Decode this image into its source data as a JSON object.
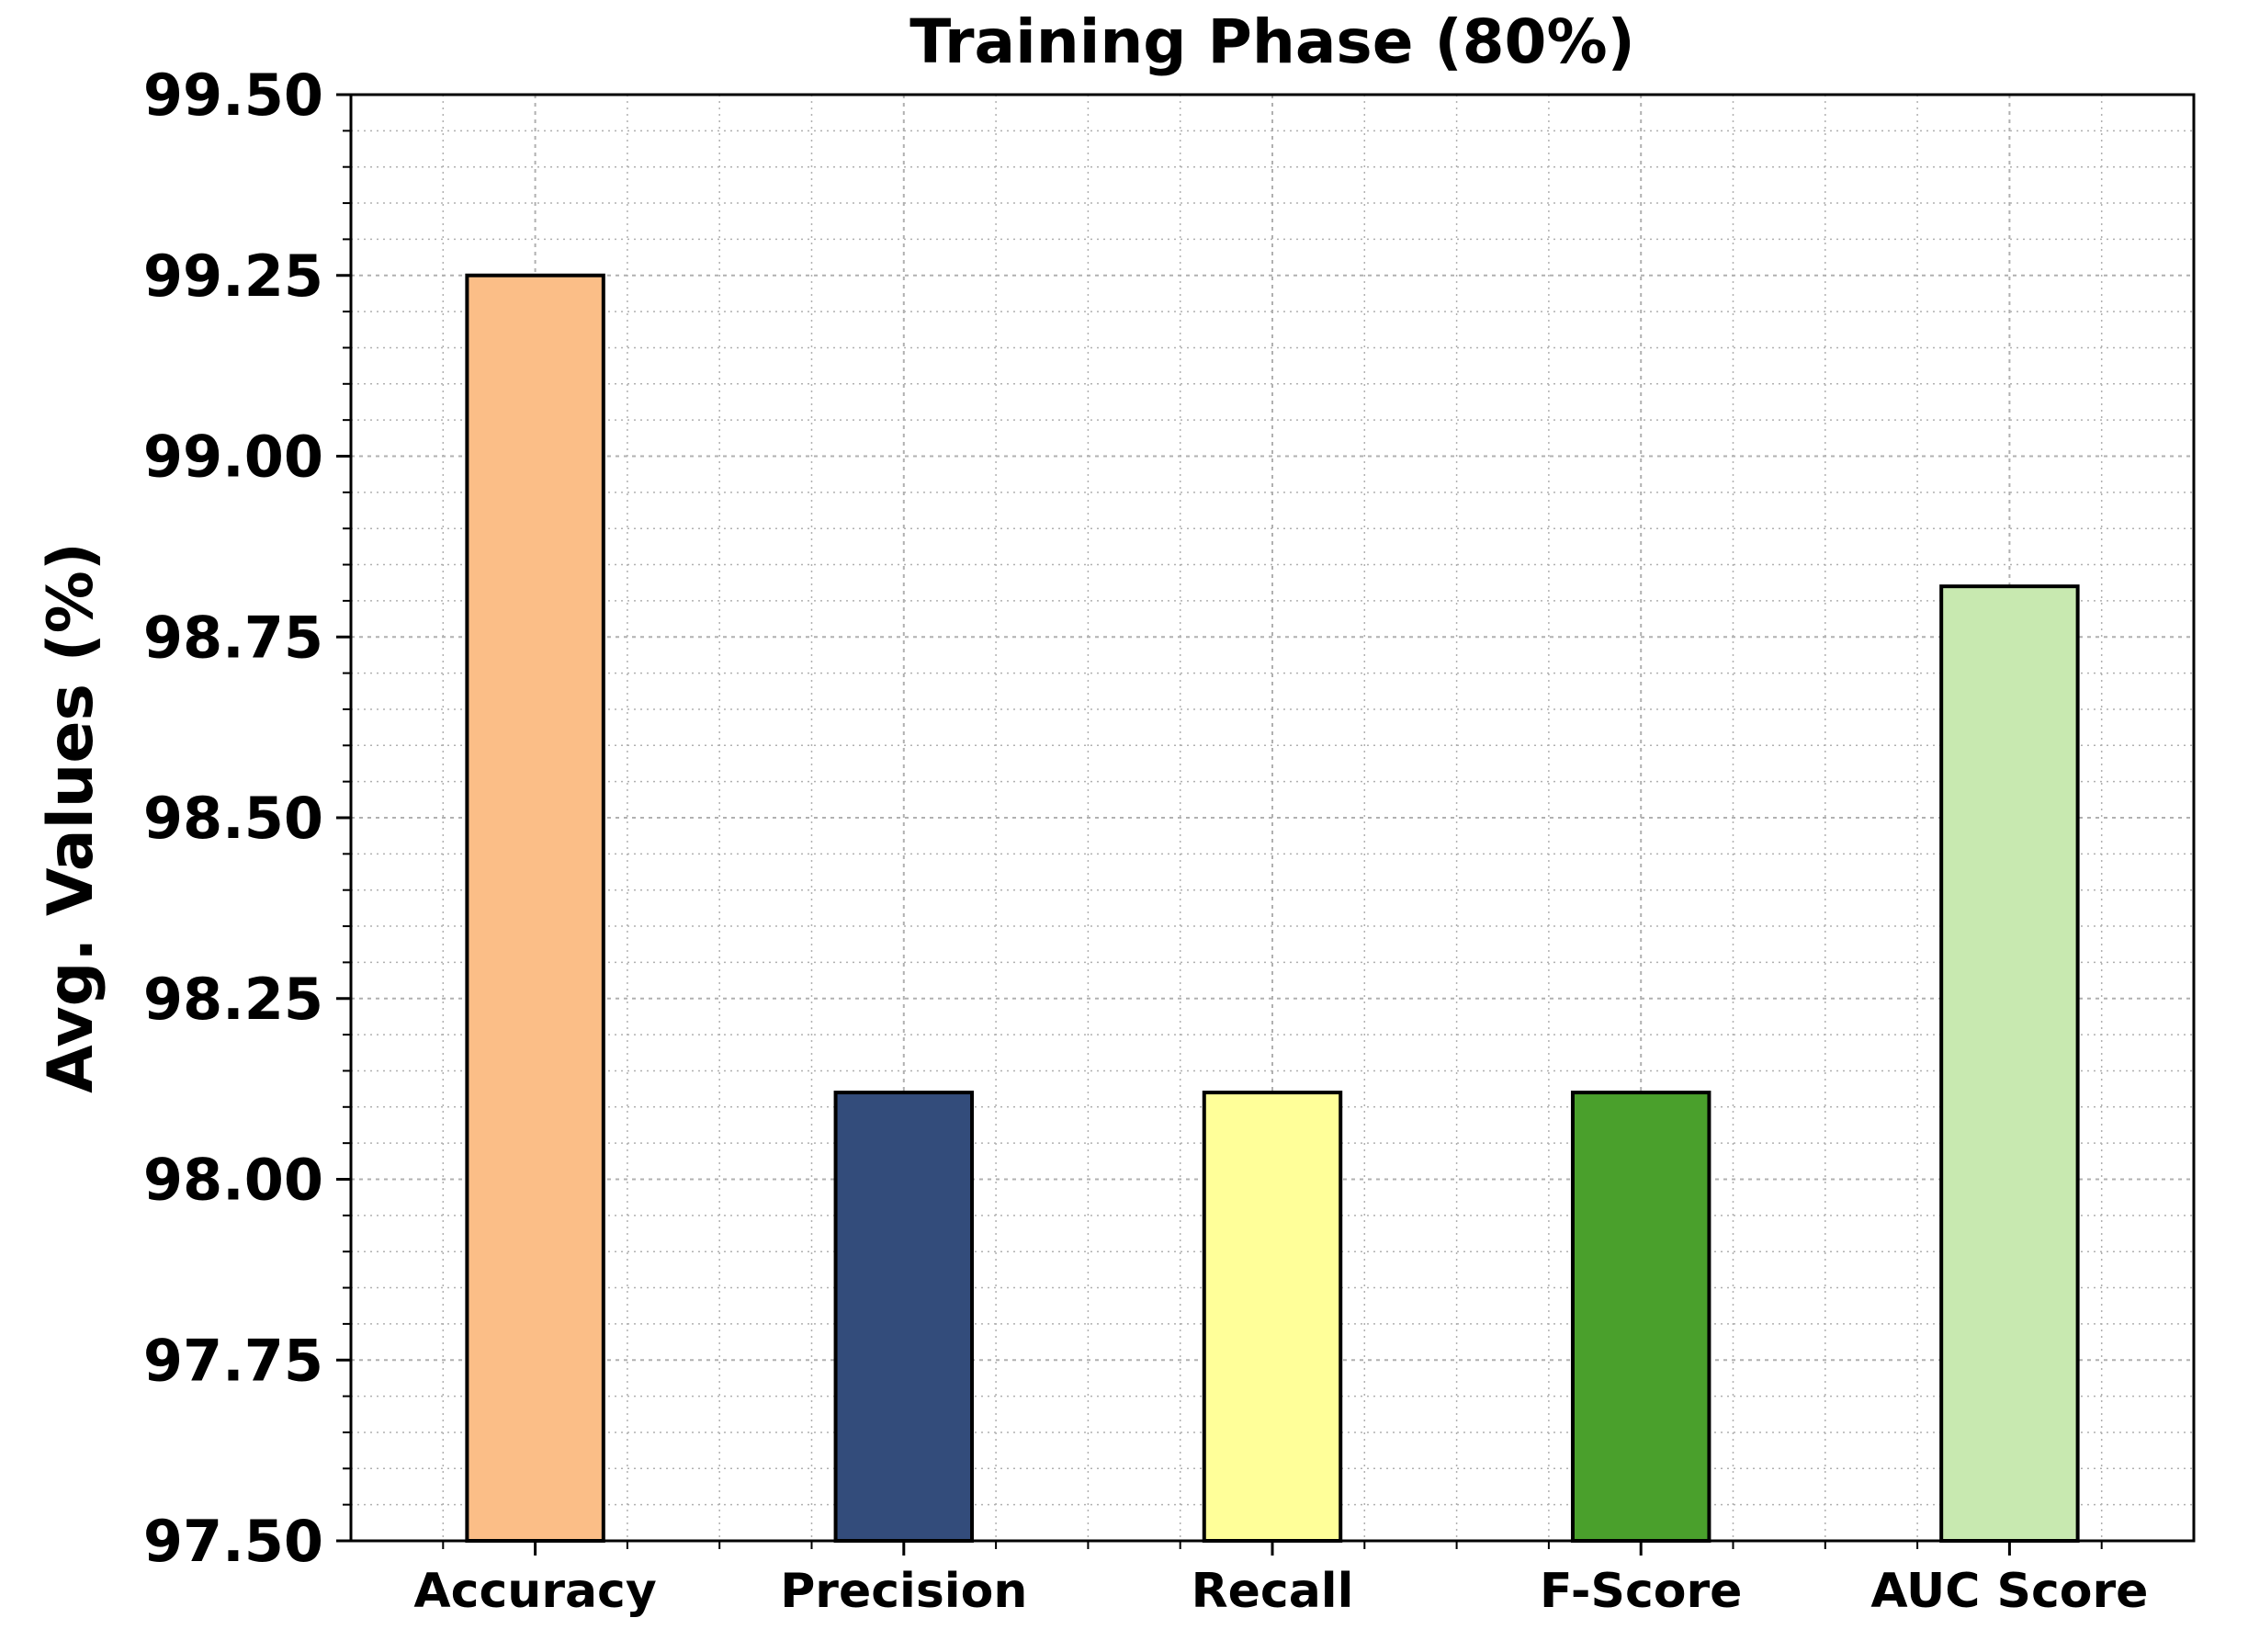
{
  "chart_data": {
    "type": "bar",
    "title": "Training Phase (80%)",
    "xlabel": "",
    "ylabel": "Avg. Values (%)",
    "categories": [
      "Accuracy",
      "Precision",
      "Recall",
      "F-Score",
      "AUC Score"
    ],
    "values": [
      99.25,
      98.12,
      98.12,
      98.12,
      98.82
    ],
    "colors": [
      "#FBBE87",
      "#334C7B",
      "#FFFF99",
      "#4AA02C",
      "#C8E9B0"
    ],
    "ylim": [
      97.5,
      99.5
    ],
    "yticks": [
      "97.50",
      "97.75",
      "98.00",
      "98.25",
      "98.50",
      "98.75",
      "99.00",
      "99.25",
      "99.50"
    ],
    "grid": true,
    "grid_style": "dotted major and minor",
    "legend": "none"
  }
}
